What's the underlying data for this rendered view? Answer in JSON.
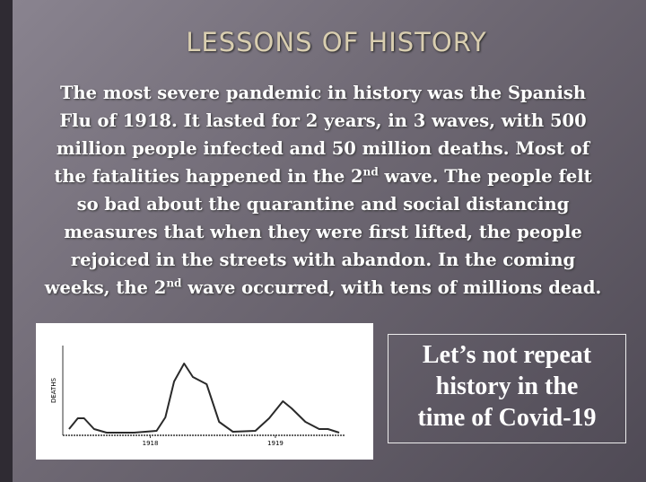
{
  "header": {
    "title": "LESSONS OF HISTORY"
  },
  "paragraph": {
    "lines": [
      {
        "parts": [
          "The most severe pandemic in history was the Spanish"
        ]
      },
      {
        "parts": [
          "Flu of 1918. It lasted for 2 years, in 3 waves, with 500"
        ]
      },
      {
        "parts": [
          "million people infected and 50 million deaths. Most of"
        ]
      },
      {
        "parts": [
          "the fatalities happened in the 2",
          "nd",
          " wave. The people felt"
        ]
      },
      {
        "parts": [
          "so bad about the quarantine and social distancing"
        ]
      },
      {
        "parts": [
          "measures that when they were first lifted, the people"
        ]
      },
      {
        "parts": [
          "rejoiced in the streets with abandon. In the coming"
        ]
      },
      {
        "parts": [
          "weeks, the 2",
          "nd",
          " wave occurred, with tens of millions dead."
        ]
      }
    ]
  },
  "callout": {
    "lines": [
      "Let’s not repeat",
      "history in the",
      "time of Covid-19"
    ]
  },
  "chart_data": {
    "type": "line",
    "y_label": "DEATHS",
    "color": "#2a2a2a",
    "x": [
      1917.35,
      1917.42,
      1917.47,
      1917.55,
      1917.65,
      1917.87,
      1918.05,
      1918.12,
      1918.19,
      1918.27,
      1918.34,
      1918.45,
      1918.55,
      1918.66,
      1918.84,
      1918.95,
      1919.06,
      1919.13,
      1919.24,
      1919.35,
      1919.42,
      1919.51
    ],
    "values": [
      7,
      19,
      19,
      7,
      3,
      3,
      5,
      20,
      60,
      80,
      65,
      57,
      15,
      4,
      5,
      19,
      38,
      30,
      15,
      7,
      7,
      3
    ],
    "xlim": [
      1917.3,
      1919.56
    ],
    "ylim": [
      0,
      100
    ],
    "xticks": [
      1918,
      1919
    ]
  }
}
